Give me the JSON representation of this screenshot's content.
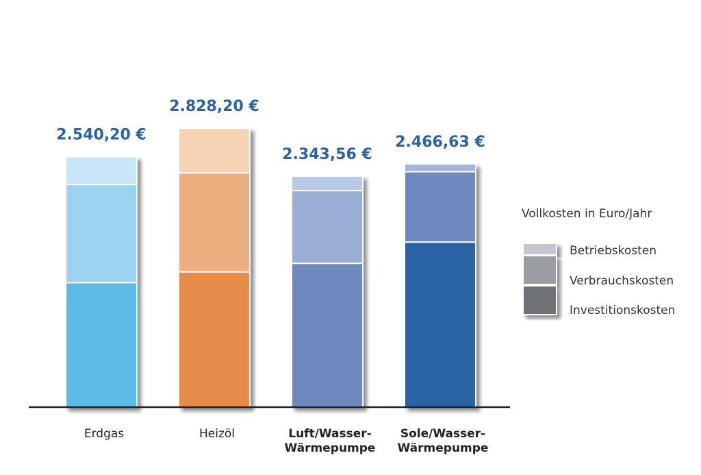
{
  "chart_data": {
    "type": "bar",
    "stacked": true,
    "title": "",
    "xlabel": "",
    "ylabel": "",
    "grid": false,
    "legend_title": "Vollkosten in Euro/Jahr",
    "legend_position": "right",
    "categories": [
      {
        "lines": [
          "Erdgas"
        ],
        "bold": false
      },
      {
        "lines": [
          "Heizöl"
        ],
        "bold": false
      },
      {
        "lines": [
          "Luft/Wasser-",
          "Wärmepumpe"
        ],
        "bold": true
      },
      {
        "lines": [
          "Sole/Wasser-",
          "Wärmepumpe"
        ],
        "bold": true
      }
    ],
    "totals": [
      2540.2,
      2828.2,
      2343.56,
      2466.63
    ],
    "total_labels": [
      "2.540,20 €",
      "2.828,20 €",
      "2.343,56 €",
      "2.466,63 €"
    ],
    "series": [
      {
        "name": "Investitionskosten",
        "values": [
          1263.0,
          1372.0,
          1458.6,
          1674.1
        ]
      },
      {
        "name": "Verbrauchskosten",
        "values": [
          995.4,
          1004.1,
          737.4,
          713.8
        ]
      },
      {
        "name": "Betriebskosten",
        "values": [
          281.8,
          452.1,
          147.56,
          78.73
        ]
      }
    ],
    "ylim": [
      0,
      2850
    ],
    "colors": [
      [
        "#5bbce7",
        "#9dd3f1",
        "#c8e6f8"
      ],
      [
        "#e68b48",
        "#efae80",
        "#f6d3b4"
      ],
      [
        "#6d89bd",
        "#98aed5",
        "#bac9e6"
      ],
      [
        "#2b64a3",
        "#6d89bd",
        "#a3b5da"
      ]
    ],
    "legend_colors": [
      "#6e7277",
      "#9a9ea3",
      "#c3c6cc"
    ],
    "total_color": "#2a63a2"
  }
}
